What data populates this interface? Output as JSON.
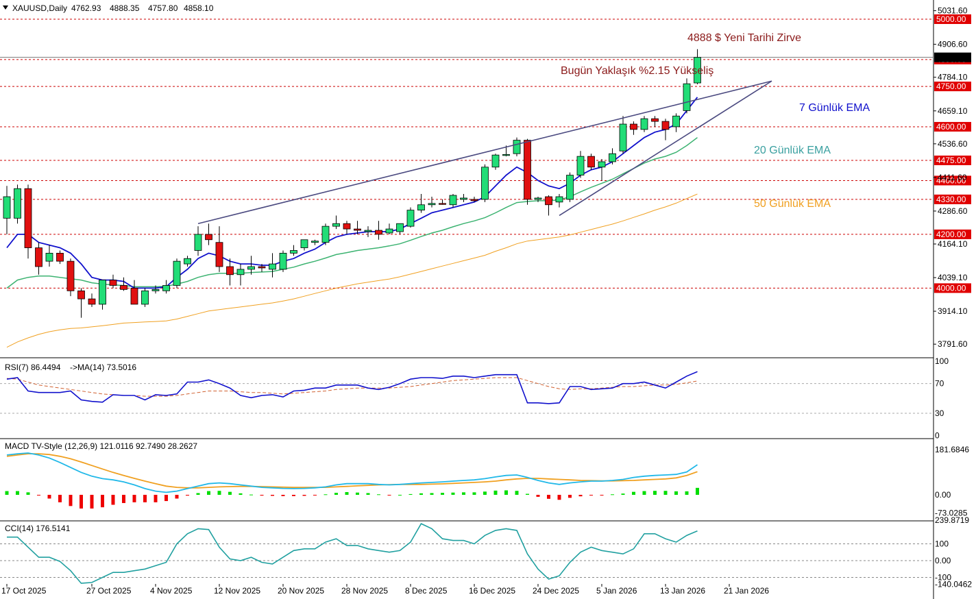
{
  "header": {
    "symbol": "XAUUSD,Daily",
    "open": "4762.93",
    "high": "4888.35",
    "low": "4757.80",
    "close": "4858.10"
  },
  "chart_data": {
    "type": "candlestick",
    "price_axis_labels": [
      "5031.60",
      "4906.60",
      "4784.10",
      "4659.10",
      "4536.60",
      "4411.60",
      "4286.60",
      "4164.10",
      "4039.10",
      "3914.10",
      "3791.60"
    ],
    "levels": [
      {
        "value": 5000,
        "label": "5000.00"
      },
      {
        "value": 4850,
        "label": "4850.00"
      },
      {
        "value": 4750,
        "label": "4750.00"
      },
      {
        "value": 4600,
        "label": "4600.00"
      },
      {
        "value": 4475,
        "label": "4475.00"
      },
      {
        "value": 4400,
        "label": "4400.00"
      },
      {
        "value": 4330,
        "label": "4330.00"
      },
      {
        "value": 4200,
        "label": "4200.00"
      },
      {
        "value": 4000,
        "label": "4000.00"
      }
    ],
    "current_price": 4858.1,
    "candles": [
      {
        "o": 4260,
        "h": 4380,
        "l": 4200,
        "c": 4340
      },
      {
        "o": 4260,
        "h": 4385,
        "l": 4240,
        "c": 4370
      },
      {
        "o": 4370,
        "h": 4385,
        "l": 4110,
        "c": 4150
      },
      {
        "o": 4150,
        "h": 4170,
        "l": 4050,
        "c": 4080
      },
      {
        "o": 4100,
        "h": 4160,
        "l": 4080,
        "c": 4130
      },
      {
        "o": 4130,
        "h": 4140,
        "l": 4090,
        "c": 4100
      },
      {
        "o": 4100,
        "h": 4110,
        "l": 3970,
        "c": 3990
      },
      {
        "o": 3990,
        "h": 4000,
        "l": 3890,
        "c": 3960
      },
      {
        "o": 3960,
        "h": 3980,
        "l": 3930,
        "c": 3940
      },
      {
        "o": 3940,
        "h": 4030,
        "l": 3920,
        "c": 4030
      },
      {
        "o": 4030,
        "h": 4050,
        "l": 4000,
        "c": 4010
      },
      {
        "o": 4010,
        "h": 4040,
        "l": 3990,
        "c": 3995
      },
      {
        "o": 4000,
        "h": 4030,
        "l": 3940,
        "c": 3940
      },
      {
        "o": 3940,
        "h": 4000,
        "l": 3930,
        "c": 3990
      },
      {
        "o": 3990,
        "h": 4010,
        "l": 3980,
        "c": 3995
      },
      {
        "o": 3990,
        "h": 4030,
        "l": 3980,
        "c": 4010
      },
      {
        "o": 4010,
        "h": 4110,
        "l": 4000,
        "c": 4100
      },
      {
        "o": 4090,
        "h": 4120,
        "l": 4080,
        "c": 4110
      },
      {
        "o": 4140,
        "h": 4230,
        "l": 4120,
        "c": 4200
      },
      {
        "o": 4200,
        "h": 4240,
        "l": 4160,
        "c": 4180
      },
      {
        "o": 4170,
        "h": 4230,
        "l": 4060,
        "c": 4080
      },
      {
        "o": 4080,
        "h": 4110,
        "l": 4010,
        "c": 4050
      },
      {
        "o": 4050,
        "h": 4090,
        "l": 4010,
        "c": 4070
      },
      {
        "o": 4070,
        "h": 4120,
        "l": 4050,
        "c": 4080
      },
      {
        "o": 4080,
        "h": 4090,
        "l": 4060,
        "c": 4075
      },
      {
        "o": 4070,
        "h": 4130,
        "l": 4040,
        "c": 4090
      },
      {
        "o": 4070,
        "h": 4140,
        "l": 4060,
        "c": 4130
      },
      {
        "o": 4130,
        "h": 4160,
        "l": 4120,
        "c": 4140
      },
      {
        "o": 4150,
        "h": 4180,
        "l": 4140,
        "c": 4180
      },
      {
        "o": 4170,
        "h": 4180,
        "l": 4160,
        "c": 4175
      },
      {
        "o": 4170,
        "h": 4240,
        "l": 4160,
        "c": 4230
      },
      {
        "o": 4230,
        "h": 4270,
        "l": 4220,
        "c": 4240
      },
      {
        "o": 4240,
        "h": 4250,
        "l": 4200,
        "c": 4220
      },
      {
        "o": 4220,
        "h": 4250,
        "l": 4200,
        "c": 4215
      },
      {
        "o": 4210,
        "h": 4230,
        "l": 4190,
        "c": 4215
      },
      {
        "o": 4215,
        "h": 4250,
        "l": 4180,
        "c": 4200
      },
      {
        "o": 4205,
        "h": 4240,
        "l": 4200,
        "c": 4220
      },
      {
        "o": 4210,
        "h": 4240,
        "l": 4200,
        "c": 4240
      },
      {
        "o": 4230,
        "h": 4300,
        "l": 4225,
        "c": 4290
      },
      {
        "o": 4290,
        "h": 4350,
        "l": 4280,
        "c": 4310
      },
      {
        "o": 4310,
        "h": 4340,
        "l": 4300,
        "c": 4315
      },
      {
        "o": 4315,
        "h": 4330,
        "l": 4310,
        "c": 4312
      },
      {
        "o": 4310,
        "h": 4350,
        "l": 4300,
        "c": 4345
      },
      {
        "o": 4330,
        "h": 4350,
        "l": 4320,
        "c": 4335
      },
      {
        "o": 4330,
        "h": 4340,
        "l": 4320,
        "c": 4325
      },
      {
        "o": 4330,
        "h": 4460,
        "l": 4320,
        "c": 4450
      },
      {
        "o": 4450,
        "h": 4500,
        "l": 4440,
        "c": 4495
      },
      {
        "o": 4495,
        "h": 4530,
        "l": 4490,
        "c": 4497
      },
      {
        "o": 4500,
        "h": 4560,
        "l": 4490,
        "c": 4550
      },
      {
        "o": 4550,
        "h": 4555,
        "l": 4310,
        "c": 4330
      },
      {
        "o": 4330,
        "h": 4340,
        "l": 4320,
        "c": 4335
      },
      {
        "o": 4340,
        "h": 4345,
        "l": 4270,
        "c": 4310
      },
      {
        "o": 4320,
        "h": 4350,
        "l": 4300,
        "c": 4340
      },
      {
        "o": 4330,
        "h": 4430,
        "l": 4320,
        "c": 4420
      },
      {
        "o": 4420,
        "h": 4510,
        "l": 4410,
        "c": 4490
      },
      {
        "o": 4490,
        "h": 4500,
        "l": 4440,
        "c": 4450
      },
      {
        "o": 4450,
        "h": 4480,
        "l": 4400,
        "c": 4470
      },
      {
        "o": 4470,
        "h": 4520,
        "l": 4460,
        "c": 4500
      },
      {
        "o": 4510,
        "h": 4640,
        "l": 4500,
        "c": 4610
      },
      {
        "o": 4610,
        "h": 4620,
        "l": 4570,
        "c": 4590
      },
      {
        "o": 4590,
        "h": 4640,
        "l": 4580,
        "c": 4630
      },
      {
        "o": 4630,
        "h": 4640,
        "l": 4600,
        "c": 4620
      },
      {
        "o": 4620,
        "h": 4630,
        "l": 4550,
        "c": 4590
      },
      {
        "o": 4600,
        "h": 4650,
        "l": 4580,
        "c": 4640
      },
      {
        "o": 4660,
        "h": 4780,
        "l": 4650,
        "c": 4760
      },
      {
        "o": 4762.93,
        "h": 4888.35,
        "l": 4757.8,
        "c": 4858.1
      }
    ],
    "ema_7": {
      "label": "7 Günlük EMA",
      "color": "#1010cc",
      "values": [
        4150,
        4200,
        4200,
        4170,
        4160,
        4150,
        4130,
        4090,
        4040,
        4030,
        4030,
        4025,
        4000,
        4000,
        4000,
        4005,
        4040,
        4070,
        4110,
        4130,
        4120,
        4100,
        4090,
        4090,
        4085,
        4085,
        4100,
        4110,
        4130,
        4145,
        4170,
        4190,
        4200,
        4205,
        4210,
        4210,
        4210,
        4220,
        4240,
        4260,
        4280,
        4290,
        4300,
        4310,
        4320,
        4340,
        4380,
        4420,
        4450,
        4430,
        4400,
        4380,
        4370,
        4390,
        4420,
        4440,
        4450,
        4470,
        4500,
        4530,
        4560,
        4580,
        4590,
        4610,
        4660,
        4710
      ]
    },
    "ema_20": {
      "label": "20 Günlük EMA",
      "color": "#3cb371",
      "values": [
        4000,
        4030,
        4040,
        4045,
        4045,
        4040,
        4035,
        4030,
        4020,
        4015,
        4012,
        4010,
        4005,
        4005,
        4005,
        4007,
        4015,
        4025,
        4040,
        4050,
        4055,
        4055,
        4055,
        4058,
        4060,
        4062,
        4070,
        4078,
        4090,
        4100,
        4112,
        4125,
        4132,
        4140,
        4145,
        4150,
        4157,
        4165,
        4178,
        4192,
        4205,
        4215,
        4228,
        4240,
        4250,
        4262,
        4280,
        4300,
        4318,
        4322,
        4325,
        4325,
        4328,
        4340,
        4358,
        4375,
        4390,
        4405,
        4425,
        4445,
        4465,
        4480,
        4490,
        4505,
        4530,
        4560
      ]
    },
    "ema_50": {
      "label": "50 Günlük EMA",
      "color": "#f0a020",
      "values": [
        3780,
        3800,
        3815,
        3828,
        3838,
        3845,
        3850,
        3852,
        3856,
        3860,
        3865,
        3870,
        3872,
        3874,
        3876,
        3878,
        3885,
        3895,
        3905,
        3915,
        3920,
        3925,
        3930,
        3935,
        3940,
        3945,
        3952,
        3960,
        3970,
        3980,
        3990,
        4000,
        4008,
        4016,
        4022,
        4028,
        4034,
        4042,
        4052,
        4062,
        4072,
        4082,
        4092,
        4102,
        4112,
        4122,
        4137,
        4150,
        4165,
        4175,
        4180,
        4185,
        4190,
        4198,
        4208,
        4218,
        4228,
        4238,
        4250,
        4263,
        4276,
        4290,
        4302,
        4316,
        4333,
        4350
      ]
    },
    "trendlines": [
      {
        "name": "upper",
        "from": {
          "i": 18,
          "v": 4240
        },
        "to": {
          "i": 72,
          "v": 4770
        }
      },
      {
        "name": "lower",
        "from": {
          "i": 52,
          "v": 4270
        },
        "to": {
          "i": 72,
          "v": 4770
        }
      }
    ],
    "annotations": [
      {
        "text": "4888 $ Yeni Tarihi Zirve",
        "color": "#8b1a1a"
      },
      {
        "text": "Bugün Yaklaşık %2.15 Yükseliş",
        "color": "#8b1a1a"
      },
      {
        "text": "7 Günlük EMA",
        "color": "#1010cc"
      },
      {
        "text": "20 Günlük EMA",
        "color": "#3aa0a0"
      },
      {
        "text": "50 Günlük EMA",
        "color": "#f0a020"
      }
    ],
    "x_labels": [
      {
        "i": 0,
        "label": "17 Oct 2025"
      },
      {
        "i": 8,
        "label": "27 Oct 2025"
      },
      {
        "i": 14,
        "label": "4 Nov 2025"
      },
      {
        "i": 20,
        "label": "12 Nov 2025"
      },
      {
        "i": 26,
        "label": "20 Nov 2025"
      },
      {
        "i": 32,
        "label": "28 Nov 2025"
      },
      {
        "i": 38,
        "label": "8 Dec 2025"
      },
      {
        "i": 44,
        "label": "16 Dec 2025"
      },
      {
        "i": 50,
        "label": "24 Dec 2025"
      },
      {
        "i": 56,
        "label": "5 Jan 2026"
      },
      {
        "i": 62,
        "label": "13 Jan 2026"
      },
      {
        "i": 68,
        "label": "21 Jan 2026"
      }
    ],
    "rsi": {
      "title": "RSI(7) 86.4494",
      "ma_title": "->MA(14) 73.5016",
      "levels": [
        "100",
        "70",
        "30",
        "0"
      ],
      "values": [
        76,
        78,
        60,
        58,
        58,
        58,
        60,
        48,
        46,
        45,
        55,
        54,
        54,
        48,
        55,
        54,
        56,
        72,
        72,
        75,
        70,
        64,
        54,
        51,
        54,
        55,
        52,
        60,
        61,
        64,
        64,
        68,
        68,
        68,
        64,
        62,
        65,
        70,
        76,
        78,
        78,
        77,
        80,
        80,
        78,
        80,
        82,
        82,
        82,
        44,
        44,
        43,
        44,
        66,
        66,
        62,
        63,
        64,
        70,
        70,
        72,
        68,
        64,
        72,
        80,
        86
      ],
      "ma_values": [
        77,
        76,
        72,
        68,
        66,
        64,
        62,
        60,
        58,
        56,
        55,
        54,
        54,
        53,
        53,
        53,
        54,
        56,
        58,
        60,
        60,
        60,
        59,
        58,
        58,
        57,
        56,
        57,
        58,
        59,
        60,
        62,
        63,
        64,
        64,
        64,
        64,
        65,
        66,
        68,
        70,
        72,
        74,
        75,
        76,
        77,
        78,
        78,
        78,
        74,
        70,
        66,
        63,
        62,
        63,
        63,
        64,
        65,
        66,
        66,
        67,
        68,
        68,
        69,
        71,
        73.5
      ]
    },
    "macd": {
      "title": "MACD TV-Style (12,26,9) 121.0116 92.7490 28.2627",
      "levels": [
        "181.6846",
        "0.00",
        "-73.0285"
      ],
      "macd_values": [
        160,
        165,
        168,
        160,
        148,
        130,
        110,
        90,
        75,
        65,
        60,
        52,
        40,
        25,
        15,
        10,
        15,
        25,
        35,
        45,
        48,
        45,
        40,
        35,
        30,
        28,
        26,
        25,
        26,
        28,
        32,
        40,
        45,
        45,
        45,
        42,
        40,
        42,
        45,
        48,
        50,
        52,
        55,
        58,
        60,
        65,
        72,
        78,
        80,
        70,
        58,
        48,
        42,
        48,
        52,
        55,
        55,
        58,
        62,
        70,
        75,
        78,
        80,
        82,
        92,
        121
      ],
      "signal_values": [
        155,
        160,
        165,
        165,
        162,
        155,
        145,
        132,
        118,
        104,
        90,
        78,
        66,
        55,
        45,
        35,
        30,
        28,
        28,
        30,
        32,
        33,
        34,
        34,
        33,
        32,
        31,
        30,
        30,
        30,
        30,
        32,
        34,
        36,
        38,
        40,
        41,
        42,
        42,
        42,
        43,
        44,
        46,
        48,
        50,
        52,
        55,
        60,
        64,
        66,
        66,
        64,
        62,
        60,
        58,
        57,
        56,
        56,
        57,
        58,
        60,
        62,
        64,
        68,
        78,
        92.749
      ],
      "hist_values": [
        15,
        15,
        10,
        -2,
        -15,
        -30,
        -45,
        -55,
        -55,
        -50,
        -40,
        -33,
        -30,
        -30,
        -30,
        -25,
        -15,
        -3,
        7,
        15,
        16,
        12,
        6,
        1,
        -3,
        -4,
        -5,
        -5,
        -4,
        -2,
        2,
        8,
        11,
        9,
        7,
        2,
        -1,
        0,
        3,
        6,
        7,
        8,
        9,
        10,
        10,
        13,
        17,
        18,
        16,
        4,
        -8,
        -16,
        -20,
        -12,
        -6,
        -2,
        -1,
        2,
        5,
        12,
        15,
        16,
        16,
        14,
        14,
        28
      ]
    },
    "cci": {
      "title": "CCI(14) 176.5141",
      "levels": [
        "239.8719",
        "100",
        "0.00",
        "-100",
        "-140.0462"
      ],
      "values": [
        140,
        140,
        80,
        20,
        20,
        -5,
        -60,
        -135,
        -130,
        -100,
        -70,
        -70,
        -60,
        -50,
        -30,
        -10,
        100,
        160,
        190,
        185,
        80,
        10,
        0,
        20,
        -10,
        -20,
        20,
        60,
        70,
        70,
        110,
        130,
        90,
        90,
        70,
        60,
        50,
        60,
        110,
        220,
        190,
        130,
        120,
        120,
        100,
        150,
        180,
        190,
        180,
        40,
        -50,
        -110,
        -90,
        -10,
        50,
        80,
        60,
        50,
        40,
        70,
        160,
        160,
        130,
        110,
        150,
        176.5
      ]
    }
  }
}
